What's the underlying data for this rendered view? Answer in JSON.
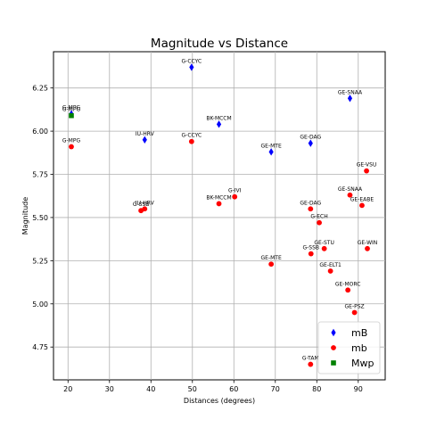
{
  "chart_data": {
    "type": "scatter",
    "title": "Magnitude vs Distance",
    "xlabel": "Distances (degrees)",
    "ylabel": "Magnitude",
    "xlim": [
      16.5,
      96.5
    ],
    "ylim": [
      4.56,
      6.46
    ],
    "xticks": [
      20,
      30,
      40,
      50,
      60,
      70,
      80,
      90
    ],
    "yticks": [
      4.75,
      5.0,
      5.25,
      5.5,
      5.75,
      6.0,
      6.25
    ],
    "ytick_labels": [
      "4.75",
      "5.00",
      "5.25",
      "5.50",
      "5.75",
      "6.00",
      "6.25"
    ],
    "grid": true,
    "legend_position": "lower-right",
    "series": [
      {
        "name": "mB",
        "marker": "diamond",
        "color": "#0000ff",
        "points": [
          {
            "x": 49.8,
            "y": 6.37,
            "label": "G-CCYC"
          },
          {
            "x": 88.0,
            "y": 6.19,
            "label": "GE-SNAA"
          },
          {
            "x": 20.8,
            "y": 6.1,
            "label": "G-MPG"
          },
          {
            "x": 56.4,
            "y": 6.04,
            "label": "BK-MCCM"
          },
          {
            "x": 38.5,
            "y": 5.95,
            "label": "IU-HRV"
          },
          {
            "x": 78.5,
            "y": 5.93,
            "label": "GE-DAG"
          },
          {
            "x": 69.0,
            "y": 5.88,
            "label": "GE-MTE"
          }
        ]
      },
      {
        "name": "mb",
        "marker": "circle",
        "color": "#ff0000",
        "points": [
          {
            "x": 49.8,
            "y": 5.94,
            "label": "G-CCYC"
          },
          {
            "x": 20.8,
            "y": 5.91,
            "label": "G-MPG"
          },
          {
            "x": 92.0,
            "y": 5.77,
            "label": "GE-VSU"
          },
          {
            "x": 88.0,
            "y": 5.63,
            "label": "GE-SNAA"
          },
          {
            "x": 60.2,
            "y": 5.62,
            "label": "G-IVI"
          },
          {
            "x": 56.4,
            "y": 5.58,
            "label": "BK-MCCM"
          },
          {
            "x": 90.9,
            "y": 5.57,
            "label": "GE-EABE"
          },
          {
            "x": 78.5,
            "y": 5.55,
            "label": "GE-DAG"
          },
          {
            "x": 38.5,
            "y": 5.55,
            "label": "IU-HRV"
          },
          {
            "x": 37.6,
            "y": 5.54,
            "label": "G-SSB"
          },
          {
            "x": 80.6,
            "y": 5.47,
            "label": "G-ECH"
          },
          {
            "x": 81.8,
            "y": 5.32,
            "label": "GE-STU"
          },
          {
            "x": 92.2,
            "y": 5.32,
            "label": "GE-WIN"
          },
          {
            "x": 78.6,
            "y": 5.29,
            "label": "G-SSB"
          },
          {
            "x": 69.0,
            "y": 5.23,
            "label": "GE-MTE"
          },
          {
            "x": 83.3,
            "y": 5.19,
            "label": "GE-ELT1"
          },
          {
            "x": 87.5,
            "y": 5.08,
            "label": "GE-MORC"
          },
          {
            "x": 89.1,
            "y": 4.95,
            "label": "GE-PSZ"
          },
          {
            "x": 78.5,
            "y": 4.65,
            "label": "G-TAM"
          }
        ]
      },
      {
        "name": "Mwp",
        "marker": "square",
        "color": "#008000",
        "points": [
          {
            "x": 20.8,
            "y": 6.09,
            "label": "G-MPG"
          }
        ]
      }
    ]
  }
}
